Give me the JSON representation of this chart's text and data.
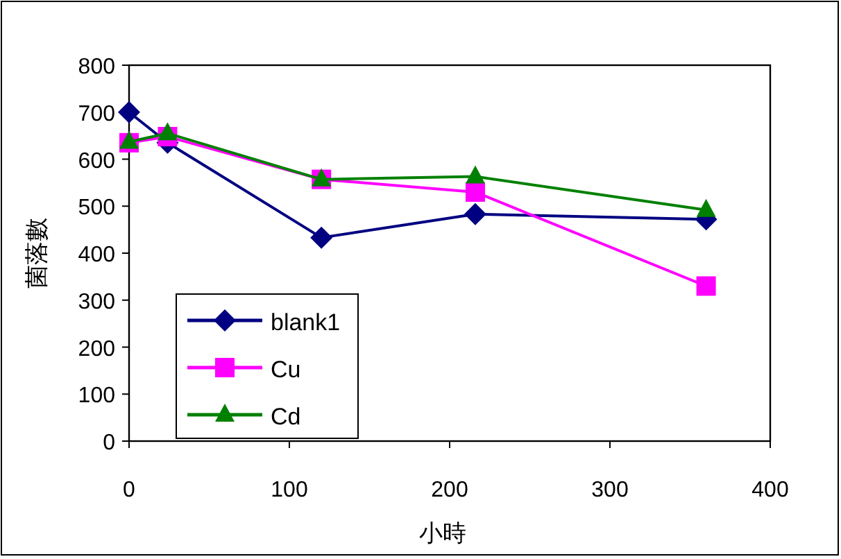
{
  "chart_data": {
    "type": "line",
    "xlabel": "小時",
    "ylabel": "菌落數",
    "x": [
      0,
      24,
      120,
      216,
      360
    ],
    "xlim": [
      0,
      400
    ],
    "xticks": [
      0,
      100,
      200,
      300,
      400
    ],
    "ylim": [
      0,
      800
    ],
    "yticks": [
      0,
      100,
      200,
      300,
      400,
      500,
      600,
      700,
      800
    ],
    "legend": "bottom left",
    "series": [
      {
        "name": "blank1",
        "color": "#000080",
        "marker": "diamond",
        "values": [
          700,
          635,
          433,
          483,
          472
        ]
      },
      {
        "name": "Cu",
        "color": "#ff00ff",
        "marker": "square",
        "values": [
          635,
          648,
          557,
          530,
          330
        ]
      },
      {
        "name": "Cd",
        "color": "#008000",
        "marker": "triangle",
        "values": [
          637,
          655,
          557,
          563,
          492
        ]
      }
    ]
  }
}
